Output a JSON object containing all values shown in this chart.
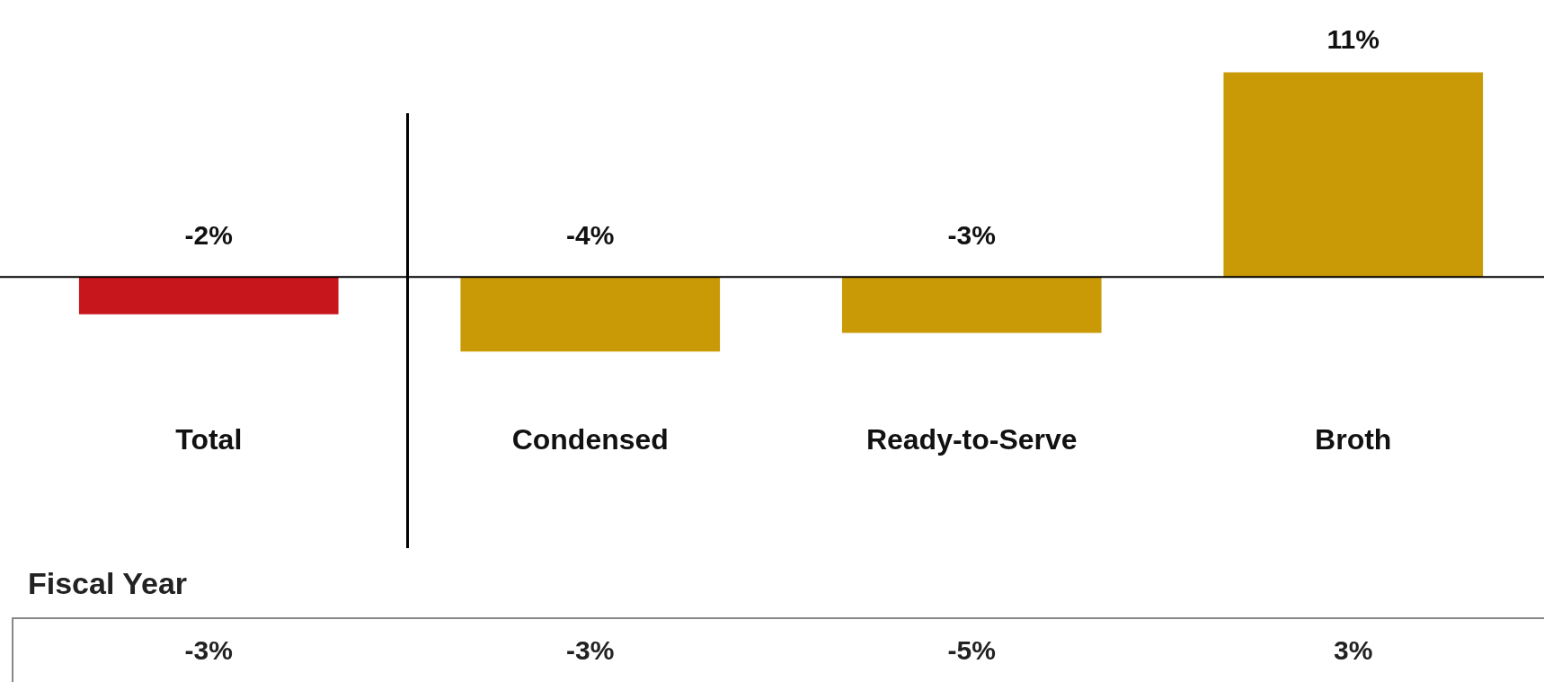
{
  "chart_data": {
    "type": "bar",
    "categories": [
      "Total",
      "Condensed",
      "Ready-to-Serve",
      "Broth"
    ],
    "values": [
      -2,
      -4,
      -3,
      11
    ],
    "colors": [
      "#c8161d",
      "#c99a06",
      "#c99a06",
      "#c99a06"
    ],
    "value_labels": [
      "-2%",
      "-4%",
      "-3%",
      "11%"
    ],
    "annotations": [
      "Fiscal Year",
      "-3%",
      "-3%",
      "-5%",
      "3%"
    ]
  }
}
